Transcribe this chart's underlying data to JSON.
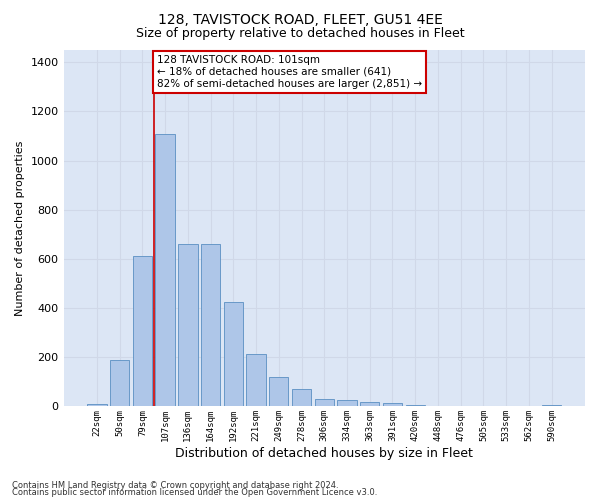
{
  "title": "128, TAVISTOCK ROAD, FLEET, GU51 4EE",
  "subtitle": "Size of property relative to detached houses in Fleet",
  "xlabel": "Distribution of detached houses by size in Fleet",
  "ylabel": "Number of detached properties",
  "categories": [
    "22sqm",
    "50sqm",
    "79sqm",
    "107sqm",
    "136sqm",
    "164sqm",
    "192sqm",
    "221sqm",
    "249sqm",
    "278sqm",
    "306sqm",
    "334sqm",
    "363sqm",
    "391sqm",
    "420sqm",
    "448sqm",
    "476sqm",
    "505sqm",
    "533sqm",
    "562sqm",
    "590sqm"
  ],
  "values": [
    10,
    190,
    610,
    1110,
    660,
    660,
    425,
    215,
    120,
    70,
    30,
    25,
    20,
    12,
    5,
    0,
    0,
    0,
    0,
    0,
    5
  ],
  "bar_color": "#aec6e8",
  "bar_edge_color": "#5a8fc2",
  "vline_index": 2.5,
  "vline_color": "#cc0000",
  "annotation_text": "128 TAVISTOCK ROAD: 101sqm\n← 18% of detached houses are smaller (641)\n82% of semi-detached houses are larger (2,851) →",
  "annotation_box_color": "#ffffff",
  "annotation_box_edge_color": "#cc0000",
  "ylim": [
    0,
    1450
  ],
  "yticks": [
    0,
    200,
    400,
    600,
    800,
    1000,
    1200,
    1400
  ],
  "grid_color": "#d0d8e8",
  "background_color": "#dce6f5",
  "fig_background_color": "#ffffff",
  "footer_line1": "Contains HM Land Registry data © Crown copyright and database right 2024.",
  "footer_line2": "Contains public sector information licensed under the Open Government Licence v3.0.",
  "title_fontsize": 10,
  "subtitle_fontsize": 9,
  "xlabel_fontsize": 9,
  "ylabel_fontsize": 8,
  "annot_fontsize": 7.5
}
